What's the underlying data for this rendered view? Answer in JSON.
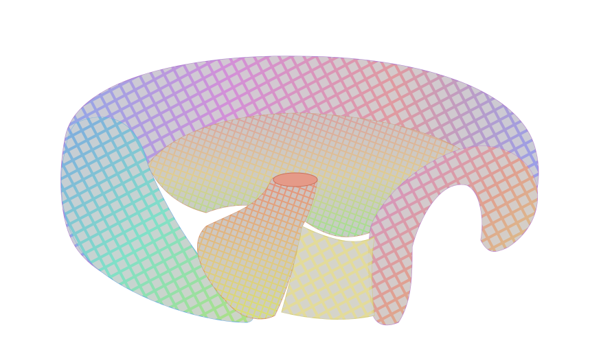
{
  "scene": {
    "background": "#ffffff",
    "object": "surface-mesh",
    "palette": [
      "#e08080",
      "#e0a070",
      "#e0d070",
      "#a0e070",
      "#70e0c0",
      "#70b0e0",
      "#9080e0",
      "#d080e0"
    ],
    "face_color": "#cfcfcf",
    "face_shade": "#a8a8a8"
  }
}
